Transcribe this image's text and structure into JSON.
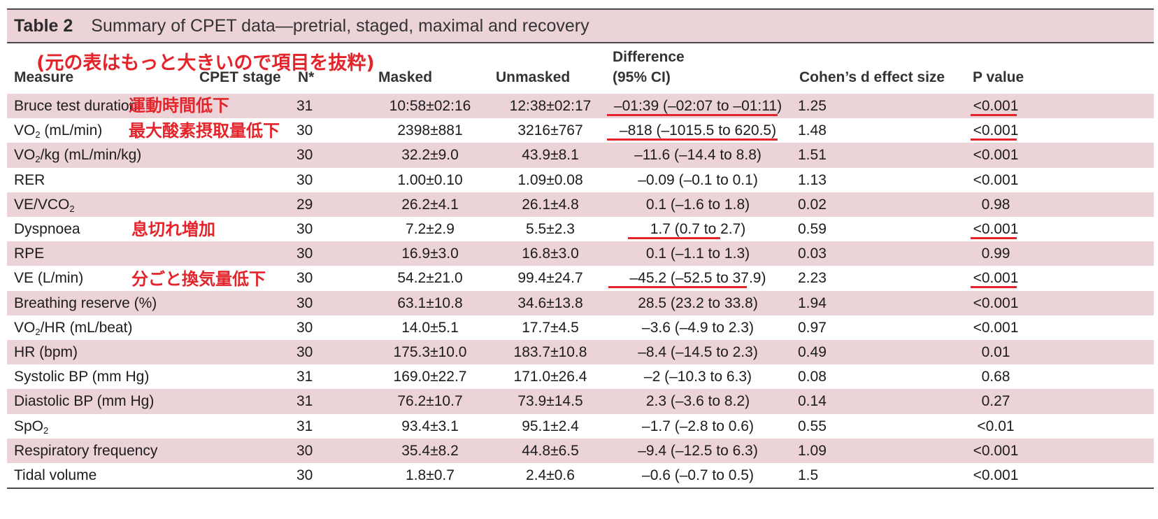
{
  "table": {
    "number": "Table 2",
    "title": "Summary of CPET data—pretrial, staged, maximal and recovery",
    "note": "(元の表はもっと大きいので項目を抜粋)",
    "columns": {
      "measure": "Measure",
      "stage": "CPET stage",
      "n": "N*",
      "masked": "Masked",
      "unmasked": "Unmasked",
      "difference_line1": "Difference",
      "difference_line2": "(95% CI)",
      "effect": "Cohen’s d effect size",
      "p": "P value"
    },
    "rows": [
      {
        "measure_html": "Bruce test duration",
        "n": "31",
        "masked": "10:58±02:16",
        "unmasked": "12:38±02:17",
        "difference": "–01:39 (–02:07 to –01:11)",
        "effect": "1.25",
        "p": "<0.001"
      },
      {
        "measure_html": "VO<sub>2</sub> (mL/min)",
        "n": "30",
        "masked": "2398±881",
        "unmasked": "3216±767",
        "difference": "–818 (–1015.5 to 620.5)",
        "effect": "1.48",
        "p": "<0.001"
      },
      {
        "measure_html": "VO<sub>2</sub>/kg (mL/min/kg)",
        "n": "30",
        "masked": "32.2±9.0",
        "unmasked": "43.9±8.1",
        "difference": "–11.6 (–14.4 to 8.8)",
        "effect": "1.51",
        "p": "<0.001"
      },
      {
        "measure_html": "RER",
        "n": "30",
        "masked": "1.00±0.10",
        "unmasked": "1.09±0.08",
        "difference": "–0.09 (–0.1 to 0.1)",
        "effect": "1.13",
        "p": "<0.001"
      },
      {
        "measure_html": "VE/VCO<sub>2</sub>",
        "n": "29",
        "masked": "26.2±4.1",
        "unmasked": "26.1±4.8",
        "difference": "0.1 (–1.6 to 1.8)",
        "effect": "0.02",
        "p": "0.98"
      },
      {
        "measure_html": "Dyspnoea",
        "n": "30",
        "masked": "7.2±2.9",
        "unmasked": "5.5±2.3",
        "difference": "1.7 (0.7 to 2.7)",
        "effect": "0.59",
        "p": "<0.001"
      },
      {
        "measure_html": "RPE",
        "n": "30",
        "masked": "16.9±3.0",
        "unmasked": "16.8±3.0",
        "difference": "0.1 (–1.1 to 1.3)",
        "effect": "0.03",
        "p": "0.99"
      },
      {
        "measure_html": "VE (L/min)",
        "n": "30",
        "masked": "54.2±21.0",
        "unmasked": "99.4±24.7",
        "difference": "–45.2 (–52.5 to 37.9)",
        "effect": "2.23",
        "p": "<0.001"
      },
      {
        "measure_html": "Breathing reserve (%)",
        "n": "30",
        "masked": "63.1±10.8",
        "unmasked": "34.6±13.8",
        "difference": "28.5 (23.2 to 33.8)",
        "effect": "1.94",
        "p": "<0.001"
      },
      {
        "measure_html": "VO<sub>2</sub>/HR (mL/beat)",
        "n": "30",
        "masked": "14.0±5.1",
        "unmasked": "17.7±4.5",
        "difference": "–3.6 (–4.9 to 2.3)",
        "effect": "0.97",
        "p": "<0.001"
      },
      {
        "measure_html": "HR (bpm)",
        "n": "30",
        "masked": "175.3±10.0",
        "unmasked": "183.7±10.8",
        "difference": "–8.4 (–14.5 to 2.3)",
        "effect": "0.49",
        "p": "0.01"
      },
      {
        "measure_html": "Systolic BP (mm Hg)",
        "n": "31",
        "masked": "169.0±22.7",
        "unmasked": "171.0±26.4",
        "difference": "–2 (–10.3 to 6.3)",
        "effect": "0.08",
        "p": "0.68"
      },
      {
        "measure_html": "Diastolic BP (mm Hg)",
        "n": "31",
        "masked": "76.2±10.7",
        "unmasked": "73.9±14.5",
        "difference": "2.3 (–3.6 to 8.2)",
        "effect": "0.14",
        "p": "0.27"
      },
      {
        "measure_html": "SpO<sub>2</sub>",
        "n": "31",
        "masked": "93.4±3.1",
        "unmasked": "95.1±2.4",
        "difference": "–1.7 (–2.8 to 0.6)",
        "effect": "0.55",
        "p": "<0.01"
      },
      {
        "measure_html": "Respiratory frequency",
        "n": "30",
        "masked": "35.4±8.2",
        "unmasked": "44.8±6.5",
        "difference": "–9.4 (–12.5 to 6.3)",
        "effect": "1.09",
        "p": "<0.001"
      },
      {
        "measure_html": "Tidal volume",
        "n": "30",
        "masked": "1.8±0.7",
        "unmasked": "2.4±0.6",
        "difference": "–0.6 (–0.7 to 0.5)",
        "effect": "1.5",
        "p": "<0.001"
      }
    ]
  },
  "annotations": {
    "bruce": "運動時間低下",
    "vo2": "最大酸素摂取量低下",
    "dyspnoea": "息切れ増加",
    "ve": "分ごと換気量低下",
    "color": "#e3252b"
  },
  "colors": {
    "shade": "#ecd3d8",
    "rule": "#4a4a4a"
  }
}
